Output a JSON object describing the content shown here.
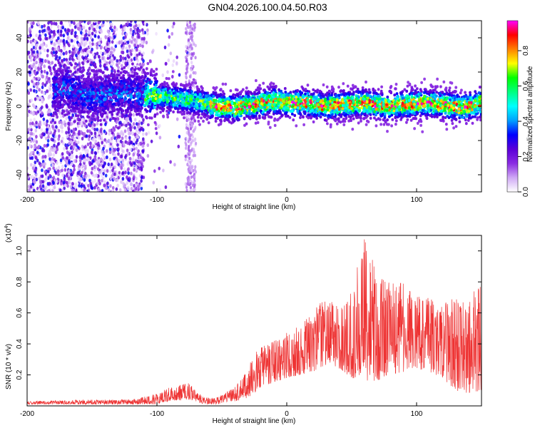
{
  "title": "GN04.2026.100.04.50.R03",
  "chart_data": [
    {
      "type": "heatmap",
      "title": "GN04.2026.100.04.50.R03",
      "xlabel": "Height of straight line (km)",
      "ylabel": "Frequency (Hz)",
      "xlim": [
        -200,
        150
      ],
      "ylim": [
        -50,
        50
      ],
      "xticks": [
        -200,
        -100,
        0,
        100
      ],
      "yticks": [
        -40,
        -20,
        0,
        20,
        40
      ],
      "colorbar": {
        "label": "Normalized spectral amplitude",
        "range": [
          0.0,
          0.97
        ],
        "ticks": [
          "0.0",
          "0.2",
          "0.4",
          "0.6",
          "0.8"
        ],
        "colors": [
          "#ffffff",
          "#cfa8f5",
          "#8a2be2",
          "#5a00d8",
          "#0000ff",
          "#00a0ff",
          "#00ffff",
          "#00ff80",
          "#00ff00",
          "#ffff00",
          "#ff8000",
          "#ff0000",
          "#ff00ff"
        ]
      },
      "ridge": {
        "description": "dominant frequency track (Hz) vs height (km)",
        "x": [
          -170,
          -150,
          -130,
          -110,
          -90,
          -70,
          -55,
          -40,
          -25,
          -10,
          0,
          15,
          30,
          45,
          60,
          75,
          90,
          105,
          120,
          135,
          150
        ],
        "y": [
          10,
          5,
          8,
          7,
          5,
          3,
          0,
          -1,
          1,
          3,
          2,
          2,
          0,
          1,
          2,
          0,
          1,
          2,
          1,
          -1,
          2
        ]
      }
    },
    {
      "type": "line",
      "xlabel": "Height of straight line (km)",
      "ylabel": "SNR (10 * v/v)",
      "yscale_label": "(x10",
      "yscale_exp": "4",
      "yscale_close": ")",
      "xlim": [
        -200,
        150
      ],
      "ylim": [
        0,
        1.1
      ],
      "xticks": [
        -200,
        -100,
        0,
        100
      ],
      "yticks": [
        "0.2",
        "0.4",
        "0.6",
        "0.8",
        "1.0"
      ],
      "color": "#ee3333",
      "envelope": {
        "x": [
          -200,
          -150,
          -120,
          -100,
          -90,
          -75,
          -65,
          -55,
          -40,
          -30,
          -20,
          -10,
          0,
          10,
          20,
          30,
          40,
          50,
          60,
          70,
          80,
          90,
          100,
          110,
          120,
          130,
          140,
          150
        ],
        "low": [
          0.01,
          0.01,
          0.01,
          0.01,
          0.03,
          0.04,
          0.01,
          0.01,
          0.03,
          0.05,
          0.12,
          0.15,
          0.18,
          0.2,
          0.22,
          0.26,
          0.24,
          0.18,
          0.15,
          0.16,
          0.2,
          0.22,
          0.24,
          0.22,
          0.18,
          0.1,
          0.08,
          0.1
        ],
        "high": [
          0.03,
          0.04,
          0.04,
          0.08,
          0.12,
          0.15,
          0.06,
          0.05,
          0.12,
          0.25,
          0.4,
          0.42,
          0.48,
          0.52,
          0.62,
          0.7,
          0.7,
          0.75,
          1.1,
          0.85,
          0.8,
          0.8,
          0.72,
          0.7,
          0.66,
          0.7,
          0.7,
          0.8
        ]
      }
    }
  ]
}
